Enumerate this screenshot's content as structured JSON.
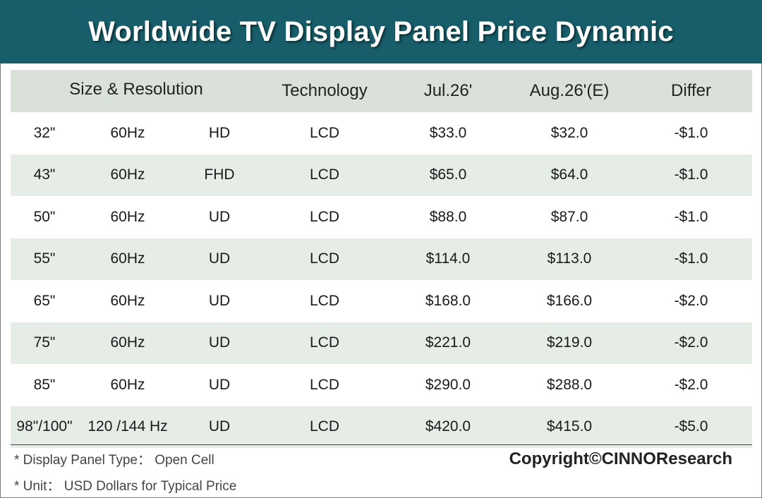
{
  "title": "Worldwide TV Display Panel Price Dynamic",
  "chart_data": {
    "type": "table",
    "title": "Worldwide TV Display Panel Price Dynamic",
    "columns": [
      "Size & Resolution",
      "Technology",
      "Jul.26'",
      "Aug.26'(E)",
      "Differ"
    ],
    "rows": [
      {
        "size": "32\"",
        "refresh": "60Hz",
        "resolution": "HD",
        "technology": "LCD",
        "jul": "$33.0",
        "aug": "$32.0",
        "differ": "-$1.0"
      },
      {
        "size": "43\"",
        "refresh": "60Hz",
        "resolution": "FHD",
        "technology": "LCD",
        "jul": "$65.0",
        "aug": "$64.0",
        "differ": "-$1.0"
      },
      {
        "size": "50\"",
        "refresh": "60Hz",
        "resolution": "UD",
        "technology": "LCD",
        "jul": "$88.0",
        "aug": "$87.0",
        "differ": "-$1.0"
      },
      {
        "size": "55\"",
        "refresh": "60Hz",
        "resolution": "UD",
        "technology": "LCD",
        "jul": "$114.0",
        "aug": "$113.0",
        "differ": "-$1.0"
      },
      {
        "size": "65\"",
        "refresh": "60Hz",
        "resolution": "UD",
        "technology": "LCD",
        "jul": "$168.0",
        "aug": "$166.0",
        "differ": "-$2.0"
      },
      {
        "size": "75\"",
        "refresh": "60Hz",
        "resolution": "UD",
        "technology": "LCD",
        "jul": "$221.0",
        "aug": "$219.0",
        "differ": "-$2.0"
      },
      {
        "size": "85\"",
        "refresh": "60Hz",
        "resolution": "UD",
        "technology": "LCD",
        "jul": "$290.0",
        "aug": "$288.0",
        "differ": "-$2.0"
      },
      {
        "size": "98\"/100\"",
        "refresh": "120 /144 Hz",
        "resolution": "UD",
        "technology": "LCD",
        "jul": "$420.0",
        "aug": "$415.0",
        "differ": "-$5.0"
      }
    ]
  },
  "notes": {
    "panel_type": "* Display Panel Type： Open Cell",
    "unit": "* Unit： USD Dollars for Typical Price"
  },
  "copyright": "Copyright©CINNOResearch",
  "colors": {
    "title_bar": "#175e6a",
    "header_row": "#d9e1d9",
    "shaded_row": "#e6ece6"
  }
}
